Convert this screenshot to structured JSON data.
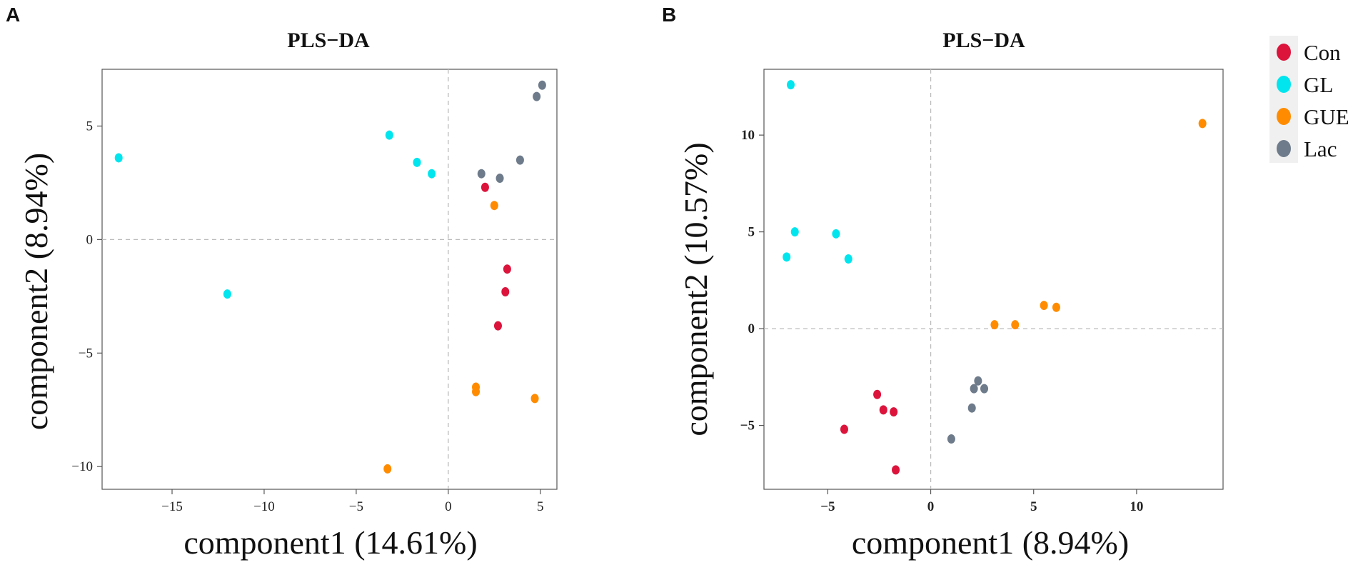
{
  "colors": {
    "Con": "#dc143c",
    "GL": "#00e5ee",
    "GUE": "#ff8c00",
    "Lac": "#6e7b8b"
  },
  "legend": [
    "Con",
    "GL",
    "GUE",
    "Lac"
  ],
  "chart_data": [
    {
      "panel": "A",
      "type": "scatter",
      "title": "PLS−DA",
      "xlabel": "component1 (14.61%)",
      "ylabel": "component2 (8.94%)",
      "xlim": [
        -18.8,
        5.9
      ],
      "ylim": [
        -11.0,
        7.5
      ],
      "xticks": [
        -15,
        -10,
        -5,
        0,
        5
      ],
      "xtick_labels": [
        "−15",
        "−10",
        "−5",
        "0",
        "5"
      ],
      "yticks": [
        -10,
        -5,
        0,
        5
      ],
      "ytick_labels": [
        "−10",
        "−5",
        "0",
        "5"
      ],
      "series": [
        {
          "name": "Con",
          "x": [
            2.0,
            3.2,
            3.1,
            2.7
          ],
          "y": [
            2.3,
            -1.3,
            -2.3,
            -3.8
          ]
        },
        {
          "name": "GL",
          "x": [
            -17.9,
            -12.0,
            -3.2,
            -1.7,
            -0.9
          ],
          "y": [
            3.6,
            -2.4,
            4.6,
            3.4,
            2.9
          ]
        },
        {
          "name": "GUE",
          "x": [
            2.5,
            1.5,
            1.5,
            4.7,
            -3.3
          ],
          "y": [
            1.5,
            -6.5,
            -6.7,
            -7.0,
            -10.1
          ]
        },
        {
          "name": "Lac",
          "x": [
            1.8,
            2.8,
            3.9,
            4.8,
            5.1
          ],
          "y": [
            2.9,
            2.7,
            3.5,
            6.3,
            6.8
          ]
        }
      ]
    },
    {
      "panel": "B",
      "type": "scatter",
      "title": "PLS−DA",
      "xlabel": "component1 (8.94%)",
      "ylabel": "component2 (10.57%)",
      "xlim": [
        -8.1,
        14.2
      ],
      "ylim": [
        -8.3,
        13.4
      ],
      "xticks": [
        -5,
        0,
        5,
        10
      ],
      "xtick_labels": [
        "−5",
        "0",
        "5",
        "10"
      ],
      "yticks": [
        -5,
        0,
        5,
        10
      ],
      "ytick_labels": [
        "−5",
        "0",
        "5",
        "10"
      ],
      "series": [
        {
          "name": "Con",
          "x": [
            -2.6,
            -2.3,
            -1.8,
            -4.2,
            -1.7
          ],
          "y": [
            -3.4,
            -4.2,
            -4.3,
            -5.2,
            -7.3
          ]
        },
        {
          "name": "GL",
          "x": [
            -6.8,
            -6.6,
            -7.0,
            -4.6,
            -4.0
          ],
          "y": [
            12.6,
            5.0,
            3.7,
            4.9,
            3.6
          ]
        },
        {
          "name": "GUE",
          "x": [
            13.2,
            5.5,
            6.1,
            3.1,
            4.1
          ],
          "y": [
            10.6,
            1.2,
            1.1,
            0.2,
            0.2
          ]
        },
        {
          "name": "Lac",
          "x": [
            2.3,
            2.6,
            2.1,
            2.0,
            1.0
          ],
          "y": [
            -2.7,
            -3.1,
            -3.1,
            -4.1,
            -5.7
          ]
        }
      ]
    }
  ]
}
